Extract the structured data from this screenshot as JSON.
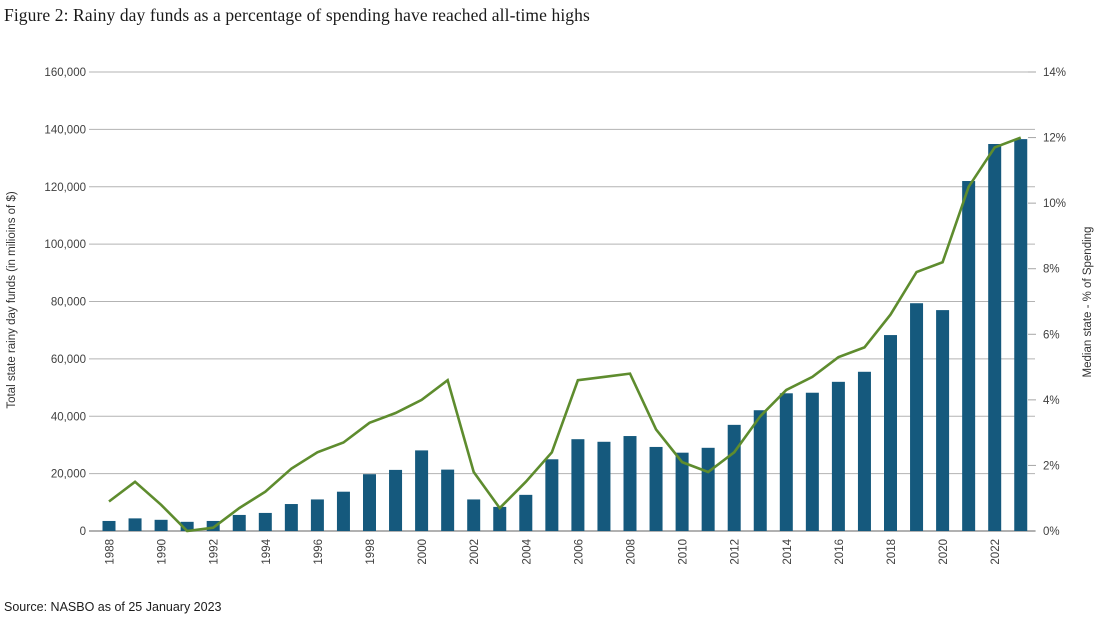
{
  "header": {
    "title": "Figure 2: Rainy day funds as a percentage of spending have reached all-time highs"
  },
  "source": {
    "text": "Source: NASBO as of 25 January 2023"
  },
  "chart_data": {
    "type": "combo-bar-line",
    "title": "Figure 2: Rainy day funds as a percentage of spending have reached all-time highs",
    "x": [
      1988,
      1989,
      1990,
      1991,
      1992,
      1993,
      1994,
      1995,
      1996,
      1997,
      1998,
      1999,
      2000,
      2001,
      2002,
      2003,
      2004,
      2005,
      2006,
      2007,
      2008,
      2009,
      2010,
      2011,
      2012,
      2013,
      2014,
      2015,
      2016,
      2017,
      2018,
      2019,
      2020,
      2021,
      2022,
      2023
    ],
    "x_tick_labels": [
      "1988",
      "1990",
      "1992",
      "1994",
      "1996",
      "1998",
      "2000",
      "2002",
      "2004",
      "2006",
      "2008",
      "2010",
      "2012",
      "2014",
      "2016",
      "2018",
      "2020",
      "2022"
    ],
    "series": [
      {
        "name": "Total state rainy day funds (in milioins of $)",
        "type": "bar",
        "axis": "left",
        "color": "#15597d",
        "values": [
          3500,
          4400,
          3900,
          3200,
          3500,
          5600,
          6300,
          9400,
          11000,
          13700,
          19800,
          21300,
          28100,
          21400,
          11000,
          8400,
          12600,
          25000,
          32000,
          31100,
          33100,
          29300,
          27300,
          29000,
          37000,
          42100,
          48000,
          48200,
          52000,
          55500,
          68300,
          79400,
          77000,
          122000,
          134900,
          136600
        ]
      },
      {
        "name": "Median state - % of Spending",
        "type": "line",
        "axis": "right",
        "color": "#5e8c2e",
        "values": [
          0.9,
          1.5,
          0.8,
          0.0,
          0.1,
          0.7,
          1.2,
          1.9,
          2.4,
          2.7,
          3.3,
          3.6,
          4.0,
          4.6,
          1.8,
          0.7,
          1.5,
          2.4,
          4.6,
          4.7,
          4.8,
          3.1,
          2.1,
          1.8,
          2.4,
          3.5,
          4.3,
          4.7,
          5.3,
          5.6,
          6.6,
          7.9,
          8.2,
          10.5,
          11.7,
          12.0
        ]
      }
    ],
    "left_axis": {
      "label": "Total state rainy day funds (in milioins of $)",
      "min": 0,
      "max": 160000,
      "step": 20000,
      "tick_labels": [
        "0",
        "20,000",
        "40,000",
        "60,000",
        "80,000",
        "100,000",
        "120,000",
        "140,000",
        "160,000"
      ]
    },
    "right_axis": {
      "label": "Median state - % of Spending",
      "min": 0,
      "max": 14,
      "step": 2,
      "tick_labels": [
        "0%",
        "2%",
        "4%",
        "6%",
        "8%",
        "10%",
        "12%",
        "14%"
      ]
    },
    "grid": true,
    "legend": "none",
    "colors": {
      "gridline": "#b3b3b3",
      "baseline": "#a6a6a6",
      "tick_text": "#404040",
      "axis_title_text": "#333333"
    }
  }
}
